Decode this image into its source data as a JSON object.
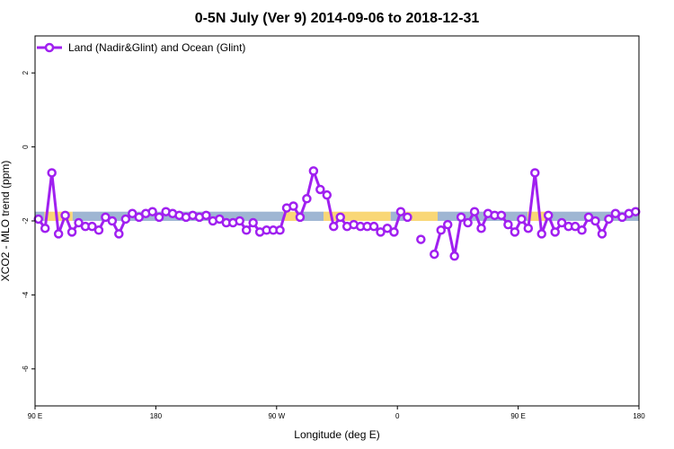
{
  "colors": {
    "series": "#a020f0",
    "band_blue": "#9fb6d3",
    "band_yellow": "#f9d776",
    "axis": "#000000",
    "background": "#ffffff"
  },
  "chart_data": {
    "type": "line",
    "title": "0-5N July (Ver 9)   2014-09-06 to 2018-12-31",
    "xlabel": "Longitude (deg E)",
    "ylabel": "XCO2 - MLO trend (ppm)",
    "xlim": [
      90,
      540
    ],
    "ylim": [
      -7,
      3
    ],
    "x_ticks": [
      90,
      180,
      270,
      360,
      450,
      540
    ],
    "x_tick_labels": [
      "90 E",
      "180",
      "90 W",
      "0",
      "90 E",
      "180"
    ],
    "y_ticks": [
      -6,
      -4,
      -2,
      0,
      2
    ],
    "y_tick_labels": [
      "-6",
      "-4",
      "-2",
      "0",
      "2"
    ],
    "grid": false,
    "legend_position": "top-left",
    "reference_band": {
      "y_range": [
        -2.0,
        -1.75
      ],
      "segments": [
        {
          "x": [
            90,
            97
          ],
          "color": "band_blue"
        },
        {
          "x": [
            97,
            118
          ],
          "color": "band_yellow"
        },
        {
          "x": [
            118,
            275
          ],
          "color": "band_blue"
        },
        {
          "x": [
            275,
            285
          ],
          "color": "band_yellow"
        },
        {
          "x": [
            285,
            305
          ],
          "color": "band_blue"
        },
        {
          "x": [
            305,
            355
          ],
          "color": "band_yellow"
        },
        {
          "x": [
            355,
            365
          ],
          "color": "band_blue"
        },
        {
          "x": [
            365,
            390
          ],
          "color": "band_yellow"
        },
        {
          "x": [
            390,
            457
          ],
          "color": "band_blue"
        },
        {
          "x": [
            457,
            472
          ],
          "color": "band_yellow"
        },
        {
          "x": [
            472,
            540
          ],
          "color": "band_blue"
        }
      ]
    },
    "series": [
      {
        "name": "Land (Nadir&Glint) and Ocean (Glint)",
        "segments": [
          [
            [
              92.5,
              -1.95
            ],
            [
              97.5,
              -2.2
            ],
            [
              102.5,
              -0.7
            ],
            [
              107.5,
              -2.35
            ],
            [
              112.5,
              -1.85
            ],
            [
              117.5,
              -2.3
            ],
            [
              122.5,
              -2.05
            ],
            [
              127.5,
              -2.15
            ],
            [
              132.5,
              -2.15
            ],
            [
              137.5,
              -2.25
            ],
            [
              142.5,
              -1.9
            ],
            [
              147.5,
              -2.0
            ],
            [
              152.5,
              -2.35
            ],
            [
              157.5,
              -1.95
            ],
            [
              162.5,
              -1.8
            ],
            [
              167.5,
              -1.9
            ],
            [
              172.5,
              -1.8
            ],
            [
              177.5,
              -1.75
            ],
            [
              182.5,
              -1.9
            ],
            [
              187.5,
              -1.75
            ],
            [
              192.5,
              -1.8
            ],
            [
              197.5,
              -1.85
            ],
            [
              202.5,
              -1.9
            ],
            [
              207.5,
              -1.85
            ],
            [
              212.5,
              -1.9
            ],
            [
              217.5,
              -1.85
            ],
            [
              222.5,
              -2.0
            ],
            [
              227.5,
              -1.95
            ],
            [
              232.5,
              -2.05
            ],
            [
              237.5,
              -2.05
            ],
            [
              242.5,
              -2.0
            ],
            [
              247.5,
              -2.25
            ],
            [
              252.5,
              -2.05
            ],
            [
              257.5,
              -2.3
            ],
            [
              262.5,
              -2.25
            ],
            [
              267.5,
              -2.25
            ],
            [
              272.5,
              -2.25
            ],
            [
              277.5,
              -1.65
            ],
            [
              282.5,
              -1.6
            ],
            [
              287.5,
              -1.9
            ],
            [
              292.5,
              -1.4
            ],
            [
              297.5,
              -0.65
            ],
            [
              302.5,
              -1.15
            ],
            [
              307.5,
              -1.3
            ],
            [
              312.5,
              -2.15
            ],
            [
              317.5,
              -1.9
            ],
            [
              322.5,
              -2.15
            ],
            [
              327.5,
              -2.1
            ],
            [
              332.5,
              -2.15
            ],
            [
              337.5,
              -2.15
            ],
            [
              342.5,
              -2.15
            ],
            [
              347.5,
              -2.3
            ],
            [
              352.5,
              -2.2
            ],
            [
              357.5,
              -2.3
            ],
            [
              362.5,
              -1.75
            ],
            [
              367.5,
              -1.9
            ]
          ],
          [
            [
              377.5,
              -2.5
            ]
          ],
          [
            [
              387.5,
              -2.9
            ],
            [
              392.5,
              -2.25
            ],
            [
              397.5,
              -2.1
            ],
            [
              402.5,
              -2.95
            ],
            [
              407.5,
              -1.9
            ],
            [
              412.5,
              -2.05
            ],
            [
              417.5,
              -1.75
            ],
            [
              422.5,
              -2.2
            ],
            [
              427.5,
              -1.8
            ],
            [
              432.5,
              -1.85
            ],
            [
              437.5,
              -1.85
            ],
            [
              442.5,
              -2.1
            ],
            [
              447.5,
              -2.3
            ],
            [
              452.5,
              -1.95
            ],
            [
              457.5,
              -2.2
            ],
            [
              462.5,
              -0.7
            ],
            [
              467.5,
              -2.35
            ],
            [
              472.5,
              -1.85
            ],
            [
              477.5,
              -2.3
            ],
            [
              482.5,
              -2.05
            ],
            [
              487.5,
              -2.15
            ],
            [
              492.5,
              -2.15
            ],
            [
              497.5,
              -2.25
            ],
            [
              502.5,
              -1.9
            ],
            [
              507.5,
              -2.0
            ],
            [
              512.5,
              -2.35
            ],
            [
              517.5,
              -1.95
            ],
            [
              522.5,
              -1.8
            ],
            [
              527.5,
              -1.9
            ],
            [
              532.5,
              -1.8
            ],
            [
              537.5,
              -1.75
            ]
          ]
        ]
      }
    ]
  }
}
